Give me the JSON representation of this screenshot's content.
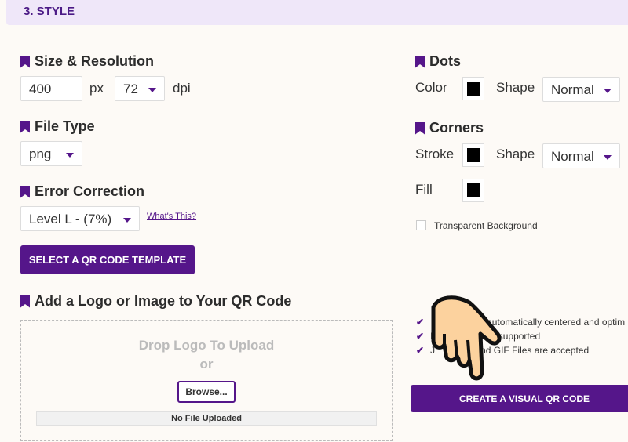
{
  "header": {
    "title": "3. STYLE"
  },
  "size": {
    "title": "Size & Resolution",
    "width": "400",
    "px": "px",
    "dpi_value": "72",
    "dpi": "dpi"
  },
  "file_type": {
    "title": "File Type",
    "value": "png"
  },
  "error": {
    "title": "Error Correction",
    "value": "Level L - (7%)",
    "help": "What's This?"
  },
  "template_button": "SELECT A QR CODE TEMPLATE",
  "logo": {
    "title": "Add a Logo or Image to Your QR Code",
    "drop": "Drop Logo To Upload",
    "or": "or",
    "browse": "Browse...",
    "status": "No File Uploaded"
  },
  "dots": {
    "title": "Dots",
    "color": "Color",
    "shape_label": "Shape",
    "shape": "Normal",
    "color_value": "#000000"
  },
  "corners": {
    "title": "Corners",
    "stroke": "Stroke",
    "shape_label": "Shape",
    "shape": "Normal",
    "fill": "Fill"
  },
  "transparent": "Transparent Background",
  "notes": [
    "e automatically centered and optim",
    "MB supported",
    "nd GIF Files are accepted"
  ],
  "notes_prefix": [
    "",
    "F",
    "J"
  ],
  "create_button": "CREATE A VISUAL QR CODE",
  "accent": "#55168a"
}
